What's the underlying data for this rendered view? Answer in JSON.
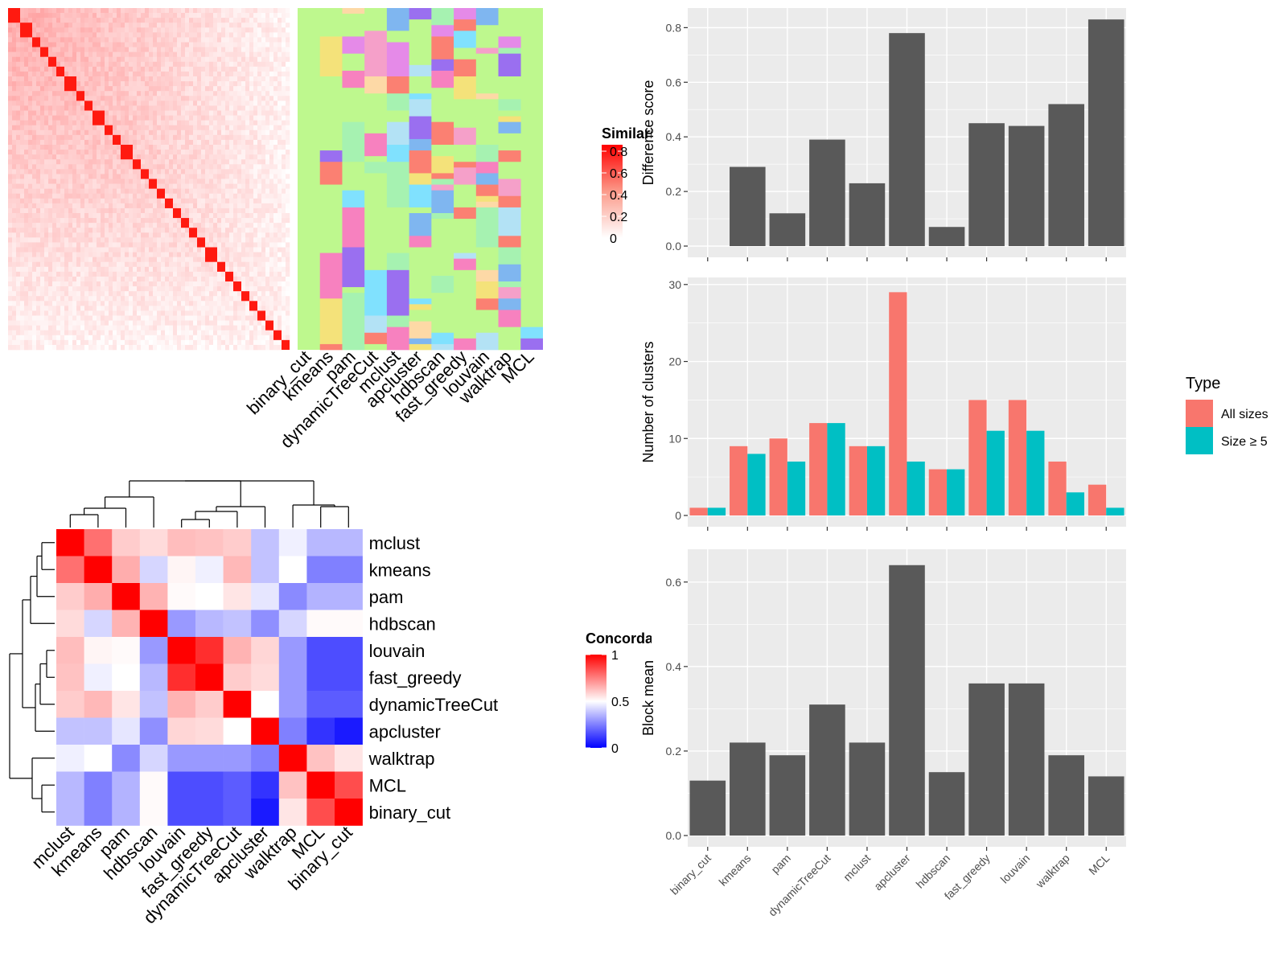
{
  "colors": {
    "panel_bg": "#ebebeb",
    "grid": "#ffffff",
    "bar": "#595959",
    "all_sizes": "#f8766d",
    "size_ge5": "#00bfc4",
    "sim_high": "#ff0000",
    "sim_low": "#ffffff",
    "conc_high": "#ff0000",
    "conc_mid": "#ffffff",
    "conc_low": "#0000ff"
  },
  "similarity_heatmap": {
    "legend_title": "Similarity",
    "legend_ticks": [
      "0",
      "0.2",
      "0.4",
      "0.6",
      "0.8"
    ],
    "method_labels": [
      "binary_cut",
      "kmeans",
      "pam",
      "dynamicTreeCut",
      "mclust",
      "apcluster",
      "hdbscan",
      "fast_greedy",
      "louvain",
      "walktrap",
      "MCL"
    ]
  },
  "concordance_heatmap": {
    "legend_title": "Concordance",
    "legend_ticks": [
      "0",
      "0.5",
      "1"
    ],
    "order": [
      "mclust",
      "kmeans",
      "pam",
      "hdbscan",
      "louvain",
      "fast_greedy",
      "dynamicTreeCut",
      "apcluster",
      "walktrap",
      "MCL",
      "binary_cut"
    ],
    "matrix": [
      [
        1.0,
        0.78,
        0.6,
        0.57,
        0.63,
        0.62,
        0.6,
        0.38,
        0.47,
        0.36,
        0.36
      ],
      [
        0.78,
        1.0,
        0.66,
        0.42,
        0.52,
        0.47,
        0.64,
        0.38,
        0.5,
        0.25,
        0.25
      ],
      [
        0.6,
        0.66,
        1.0,
        0.65,
        0.51,
        0.5,
        0.55,
        0.45,
        0.27,
        0.35,
        0.35
      ],
      [
        0.57,
        0.42,
        0.65,
        1.0,
        0.3,
        0.36,
        0.38,
        0.28,
        0.42,
        0.51,
        0.51
      ],
      [
        0.63,
        0.52,
        0.51,
        0.3,
        1.0,
        0.91,
        0.65,
        0.58,
        0.3,
        0.15,
        0.15
      ],
      [
        0.62,
        0.47,
        0.5,
        0.36,
        0.91,
        1.0,
        0.6,
        0.57,
        0.3,
        0.15,
        0.15
      ],
      [
        0.6,
        0.64,
        0.55,
        0.38,
        0.65,
        0.6,
        1.0,
        0.5,
        0.3,
        0.18,
        0.18
      ],
      [
        0.38,
        0.38,
        0.45,
        0.28,
        0.58,
        0.57,
        0.5,
        1.0,
        0.25,
        0.1,
        0.05
      ],
      [
        0.47,
        0.5,
        0.27,
        0.42,
        0.3,
        0.3,
        0.3,
        0.25,
        1.0,
        0.62,
        0.55
      ],
      [
        0.36,
        0.25,
        0.35,
        0.51,
        0.15,
        0.15,
        0.18,
        0.1,
        0.62,
        1.0,
        0.85
      ],
      [
        0.36,
        0.25,
        0.35,
        0.51,
        0.15,
        0.15,
        0.18,
        0.05,
        0.55,
        0.85,
        1.0
      ]
    ]
  },
  "chart_data": [
    {
      "type": "bar",
      "categories": [
        "binary_cut",
        "kmeans",
        "pam",
        "dynamicTreeCut",
        "mclust",
        "apcluster",
        "hdbscan",
        "fast_greedy",
        "louvain",
        "walktrap",
        "MCL"
      ],
      "values": [
        0.0,
        0.29,
        0.12,
        0.39,
        0.23,
        0.78,
        0.07,
        0.45,
        0.44,
        0.52,
        0.83
      ],
      "ylabel": "Difference score",
      "ylim": [
        0,
        0.86
      ],
      "yticks": [
        "0.0",
        "0.2",
        "0.4",
        "0.6",
        "0.8"
      ],
      "grid": true
    },
    {
      "type": "bar",
      "categories": [
        "binary_cut",
        "kmeans",
        "pam",
        "dynamicTreeCut",
        "mclust",
        "apcluster",
        "hdbscan",
        "fast_greedy",
        "louvain",
        "walktrap",
        "MCL"
      ],
      "series": [
        {
          "name": "All sizes",
          "values": [
            1,
            9,
            10,
            12,
            9,
            29,
            6,
            15,
            15,
            7,
            4
          ]
        },
        {
          "name": "Size ≥ 5",
          "values": [
            1,
            8,
            7,
            12,
            9,
            7,
            6,
            11,
            11,
            3,
            1
          ]
        }
      ],
      "ylabel": "Number of clusters",
      "ylim": [
        0,
        30.5
      ],
      "yticks": [
        "0",
        "10",
        "20",
        "30"
      ],
      "legend_title": "Type",
      "legend_position": "right",
      "grid": true
    },
    {
      "type": "bar",
      "categories": [
        "binary_cut",
        "kmeans",
        "pam",
        "dynamicTreeCut",
        "mclust",
        "apcluster",
        "hdbscan",
        "fast_greedy",
        "louvain",
        "walktrap",
        "MCL"
      ],
      "values": [
        0.13,
        0.22,
        0.19,
        0.31,
        0.22,
        0.64,
        0.15,
        0.36,
        0.36,
        0.19,
        0.14
      ],
      "ylabel": "Block mean",
      "ylim": [
        0,
        0.67
      ],
      "yticks": [
        "0.0",
        "0.2",
        "0.4",
        "0.6"
      ],
      "grid": true
    }
  ]
}
